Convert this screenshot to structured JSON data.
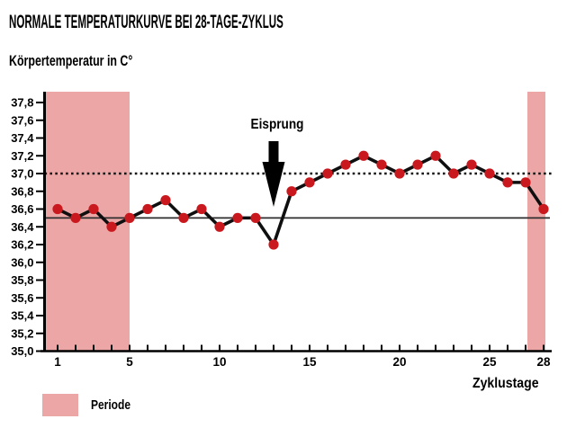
{
  "header": {
    "title": "NORMALE TEMPERATURKURVE BEI 28-TAGE-ZYKLUS",
    "subtitle": "Körpertemperatur in C°"
  },
  "legend": {
    "items": [
      {
        "label": "Periode",
        "swatch_color": "#eda6a6"
      }
    ]
  },
  "colors": {
    "band": "#eda6a6",
    "point": "#c9191e",
    "line": "#0f0f0f",
    "axis": "#000000",
    "reference_dotted": "#151515",
    "reference_solid": "#2e2e2e",
    "text": "#000000"
  },
  "chart_data": {
    "type": "line",
    "title": "NORMALE TEMPERATURKURVE BEI 28-TAGE-ZYKLUS",
    "xlabel": "Zyklustage",
    "ylabel": "Körpertemperatur in C°",
    "x": [
      1,
      2,
      3,
      4,
      5,
      6,
      7,
      8,
      9,
      10,
      11,
      12,
      13,
      14,
      15,
      16,
      17,
      18,
      19,
      20,
      21,
      22,
      23,
      24,
      25,
      26,
      27,
      28
    ],
    "series": [
      {
        "name": "Körpertemperatur",
        "values": [
          36.6,
          36.5,
          36.6,
          36.4,
          36.5,
          36.6,
          36.7,
          36.5,
          36.6,
          36.4,
          36.5,
          36.5,
          36.2,
          36.8,
          36.9,
          37.0,
          37.1,
          37.2,
          37.1,
          37.0,
          37.1,
          37.2,
          37.0,
          37.1,
          37.0,
          36.9,
          36.9,
          36.6
        ]
      }
    ],
    "ylim": [
      35.0,
      37.8
    ],
    "xlim": [
      1,
      28
    ],
    "grid": false,
    "y_tick_values": [
      35.0,
      35.2,
      35.4,
      35.6,
      35.8,
      36.0,
      36.2,
      36.4,
      36.6,
      36.8,
      37.0,
      37.2,
      37.4,
      37.6,
      37.8
    ],
    "y_tick_labels": [
      "35,0",
      "35,2",
      "35,4",
      "35,6",
      "35,8",
      "36,0",
      "36,2",
      "36,4",
      "36,6",
      "36,8",
      "37,0",
      "37,2",
      "37,4",
      "37,6",
      "37,8"
    ],
    "x_tick_days": [
      1,
      2,
      3,
      4,
      5,
      6,
      7,
      8,
      9,
      10,
      11,
      12,
      13,
      14,
      15,
      16,
      17,
      18,
      19,
      20,
      21,
      22,
      23,
      24,
      25,
      26,
      27,
      28
    ],
    "x_tick_labels": [
      {
        "day": 1,
        "label": "1"
      },
      {
        "day": 5,
        "label": "5"
      },
      {
        "day": 10,
        "label": "10"
      },
      {
        "day": 15,
        "label": "15"
      },
      {
        "day": 20,
        "label": "20"
      },
      {
        "day": 25,
        "label": "25"
      },
      {
        "day": 28,
        "label": "28"
      }
    ],
    "reference_lines": [
      {
        "value": 37.0,
        "style": "dotted"
      },
      {
        "value": 36.5,
        "style": "solid"
      }
    ],
    "period_bands": [
      {
        "from_day": 0.3,
        "to_day": 5.0
      },
      {
        "from_day": 27.1,
        "to_day": 28.1
      }
    ],
    "annotation": {
      "text": "Eisprung",
      "day": 13,
      "points_to_value": 36.2
    },
    "legend_position": "bottom-left"
  }
}
